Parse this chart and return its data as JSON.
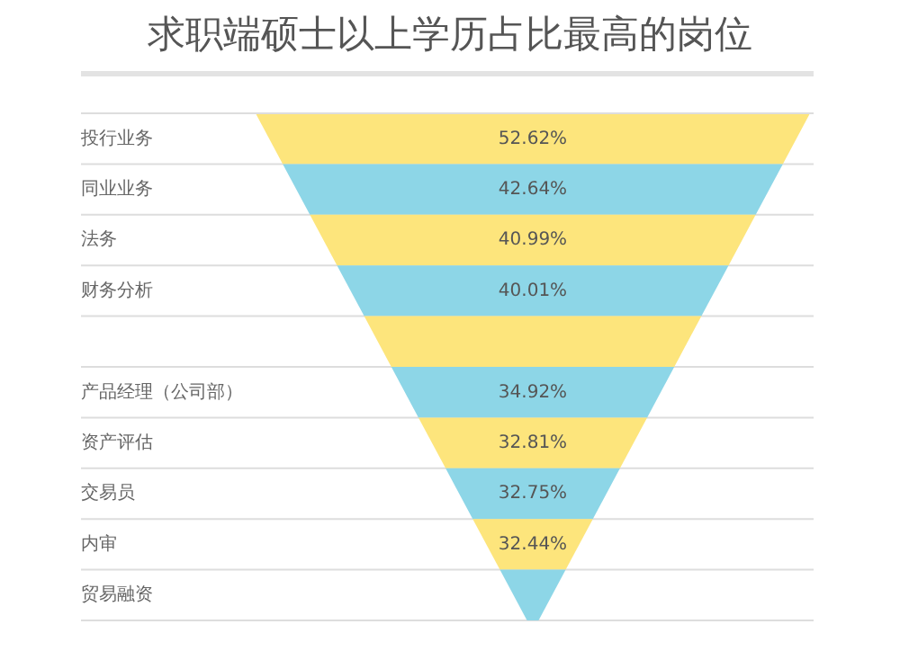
{
  "chart_data": {
    "type": "other",
    "title": "求职端硕士以上学历占比最高的岗位",
    "categories": [
      "投行业务",
      "同业业务",
      "法务",
      "财务分析",
      null,
      "产品经理（公司部）",
      "资产评估",
      "交易员",
      "内审",
      "贸易融资"
    ],
    "values": [
      52.62,
      42.64,
      40.99,
      40.01,
      null,
      34.92,
      32.81,
      32.75,
      32.44,
      null
    ],
    "value_labels": [
      "52.62%",
      "42.64%",
      "40.99%",
      "40.01%",
      null,
      "34.92%",
      "32.81%",
      "32.75%",
      "32.44%",
      null
    ],
    "colors": [
      "#fde57c",
      "#8dd6e7",
      "#fde57c",
      "#8dd6e7",
      "#fde57c",
      "#8dd6e7",
      "#fde57c",
      "#8dd6e7",
      "#fde57c",
      "#8dd6e7"
    ]
  }
}
